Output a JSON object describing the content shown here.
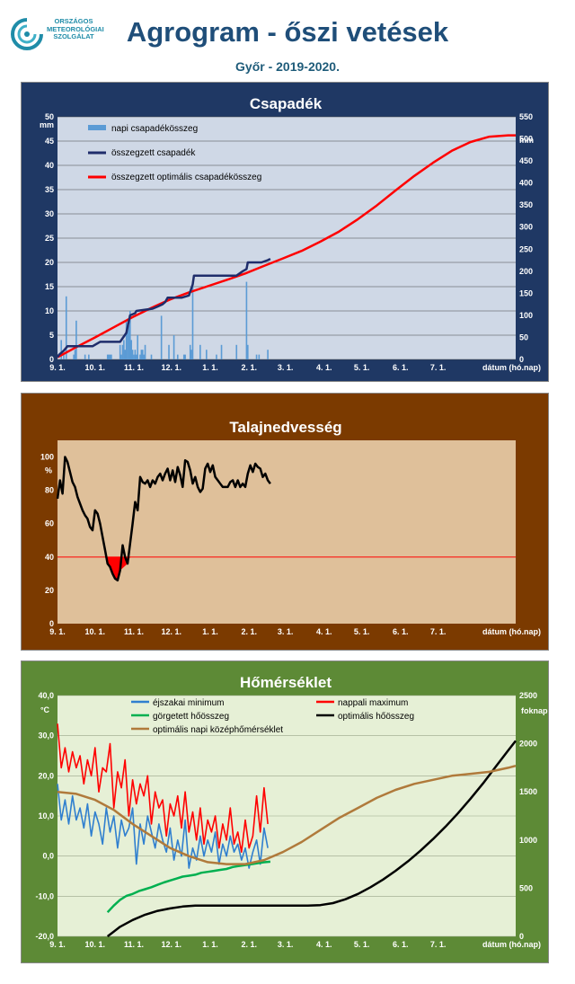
{
  "header": {
    "logo_lines": [
      "ORSZÁGOS",
      "METEOROLÓGIAI",
      "SZOLGÁLAT"
    ],
    "title": "Agrogram - őszi vetések",
    "subtitle": "Győr - 2019-2020."
  },
  "colors": {
    "panel1_bg": "#1f3864",
    "panel1_plot": "#cfd8e6",
    "panel2_bg": "#7b3a00",
    "panel2_plot": "#dfc09a",
    "panel3_bg": "#5d8a36",
    "panel3_plot": "#e6f0d6"
  },
  "chart_data": [
    {
      "type": "bar",
      "title": "Csapadék",
      "ylabel": "mm",
      "y2label": "mm",
      "xlabel": "dátum (hó.nap)",
      "x_ticks": [
        "9. 1.",
        "10. 1.",
        "11. 1.",
        "12. 1.",
        "1. 1.",
        "2. 1.",
        "3. 1.",
        "4. 1.",
        "5. 1.",
        "6. 1.",
        "7. 1."
      ],
      "ylim": [
        0,
        50
      ],
      "y_ticks": [
        0,
        5,
        10,
        15,
        20,
        25,
        30,
        35,
        40,
        45,
        50
      ],
      "y2lim": [
        0,
        550
      ],
      "y2_ticks": [
        0,
        50,
        100,
        150,
        200,
        250,
        300,
        350,
        400,
        450,
        500,
        550
      ],
      "grid": true,
      "legend_position": "top-left",
      "legend": [
        "napi csapadékösszeg",
        "összegzett csapadék",
        "összegzett optimális csapadékösszeg"
      ],
      "series": [
        {
          "name": "napi csapadékösszeg",
          "type": "bar",
          "axis": "left",
          "color": "#5b9bd5",
          "days": [
            3,
            5,
            7,
            13,
            14,
            15,
            22,
            25,
            40,
            41,
            42,
            43,
            50,
            51,
            52,
            53,
            54,
            55,
            56,
            57,
            58,
            59,
            60,
            61,
            62,
            63,
            64,
            66,
            67,
            68,
            69,
            70,
            75,
            83,
            89,
            93,
            96,
            101,
            102,
            106,
            107,
            108,
            114,
            119,
            127,
            131,
            143,
            151,
            152,
            159,
            161,
            168
          ],
          "values": [
            4,
            1,
            13,
            1,
            2,
            8,
            1,
            1,
            1,
            1,
            1,
            1,
            3,
            1,
            3,
            4,
            2,
            8,
            6,
            7,
            10,
            4,
            2,
            1,
            2,
            1,
            5,
            1,
            2,
            2,
            1,
            3,
            1,
            9,
            3,
            5,
            1,
            1,
            1,
            3,
            2,
            16,
            3,
            2,
            1,
            3,
            3,
            16,
            3,
            1,
            1,
            2
          ]
        },
        {
          "name": "összegzett csapadék",
          "type": "line",
          "axis": "right",
          "color": "#1f2d6b",
          "x": [
            0,
            1,
            5,
            8,
            12,
            28,
            34,
            50,
            55,
            58,
            62,
            63,
            76,
            80,
            84,
            86,
            88,
            99,
            105,
            108,
            109,
            130,
            143,
            148,
            151,
            152,
            163,
            168,
            170
          ],
          "y": [
            5,
            10,
            20,
            30,
            30,
            30,
            40,
            40,
            60,
            100,
            105,
            110,
            115,
            120,
            125,
            130,
            140,
            140,
            145,
            170,
            190,
            190,
            190,
            200,
            205,
            220,
            220,
            225,
            228
          ]
        },
        {
          "name": "összegzett optimális csapadékösszeg",
          "type": "line",
          "axis": "right",
          "color": "#ff0000",
          "x": [
            0,
            15,
            30,
            45,
            60,
            75,
            90,
            105,
            120,
            135,
            150,
            165,
            180,
            195,
            210,
            225,
            240,
            255,
            270,
            285,
            300,
            315,
            330,
            345,
            360,
            366
          ],
          "y": [
            5,
            28,
            50,
            73,
            96,
            117,
            136,
            152,
            166,
            180,
            195,
            212,
            229,
            246,
            267,
            290,
            318,
            349,
            383,
            416,
            446,
            473,
            493,
            505,
            508,
            508
          ]
        }
      ]
    },
    {
      "type": "line",
      "title": "Talajnedvesség",
      "ylabel": "%",
      "xlabel": "dátum (hó.nap)",
      "x_ticks": [
        "9. 1.",
        "10. 1.",
        "11. 1.",
        "12. 1.",
        "1. 1.",
        "2. 1.",
        "3. 1.",
        "4. 1.",
        "5. 1.",
        "6. 1.",
        "7. 1."
      ],
      "ylim": [
        0,
        110
      ],
      "y_ticks": [
        0,
        20,
        40,
        60,
        80,
        100
      ],
      "grid": false,
      "threshold": 40,
      "threshold_color": "#ff0000",
      "fill_below_threshold_color": "#ff0000",
      "series": [
        {
          "name": "",
          "color": "#000000",
          "x": [
            0,
            2,
            4,
            6,
            8,
            10,
            12,
            14,
            16,
            18,
            20,
            22,
            24,
            26,
            28,
            30,
            32,
            34,
            36,
            38,
            40,
            42,
            44,
            46,
            48,
            50,
            52,
            54,
            56,
            58,
            60,
            62,
            64,
            66,
            68,
            70,
            72,
            74,
            76,
            78,
            80,
            82,
            84,
            86,
            88,
            90,
            92,
            94,
            96,
            98,
            100,
            102,
            104,
            106,
            108,
            110,
            112,
            114,
            116,
            118,
            120,
            122,
            124,
            126,
            128,
            130,
            132,
            134,
            136,
            138,
            140,
            142,
            144,
            146,
            148,
            150,
            152,
            154,
            156,
            158,
            160,
            162,
            164,
            166,
            168,
            170
          ],
          "y": [
            75,
            86,
            78,
            100,
            97,
            91,
            85,
            82,
            76,
            72,
            68,
            65,
            63,
            58,
            56,
            68,
            66,
            60,
            52,
            44,
            36,
            34,
            30,
            27,
            26,
            32,
            47,
            40,
            36,
            48,
            60,
            73,
            68,
            88,
            85,
            84,
            86,
            82,
            86,
            84,
            88,
            90,
            86,
            90,
            93,
            86,
            92,
            85,
            94,
            89,
            82,
            98,
            97,
            92,
            84,
            88,
            82,
            79,
            81,
            93,
            96,
            91,
            95,
            88,
            86,
            84,
            82,
            82,
            82,
            85,
            86,
            82,
            86,
            82,
            84,
            82,
            90,
            95,
            91,
            96,
            94,
            93,
            88,
            90,
            86,
            84
          ]
        }
      ]
    },
    {
      "type": "line",
      "title": "Hőmérséklet",
      "ylabel": "°C",
      "y2label": "foknap",
      "xlabel": "dátum (hó.nap)",
      "x_ticks": [
        "9. 1.",
        "10. 1.",
        "11. 1.",
        "12. 1.",
        "1. 1.",
        "2. 1.",
        "3. 1.",
        "4. 1.",
        "5. 1.",
        "6. 1.",
        "7. 1."
      ],
      "y_tick_labels": [
        "-20,0",
        "-10,0",
        "0,0",
        "10,0",
        "20,0",
        "30,0",
        "40,0"
      ],
      "ylim": [
        -20,
        40
      ],
      "y2lim": [
        0,
        2500
      ],
      "y2_ticks": [
        0,
        500,
        1000,
        1500,
        2000,
        2500
      ],
      "grid": true,
      "legend_position": "top",
      "legend": [
        "éjszakai minimum",
        "nappali maximum",
        "görgetett hőösszeg",
        "optimális hőösszeg",
        "optimális napi középhőmérséklet"
      ],
      "series": [
        {
          "name": "éjszakai minimum",
          "axis": "left",
          "color": "#2f7fcf",
          "x": [
            0,
            3,
            6,
            9,
            12,
            15,
            18,
            21,
            24,
            27,
            30,
            33,
            36,
            39,
            42,
            45,
            48,
            51,
            54,
            57,
            60,
            63,
            66,
            69,
            72,
            75,
            78,
            81,
            84,
            87,
            90,
            93,
            96,
            99,
            102,
            105,
            108,
            111,
            114,
            117,
            120,
            123,
            126,
            129,
            132,
            135,
            138,
            141,
            144,
            147,
            150,
            153,
            156,
            159,
            162,
            165,
            168
          ],
          "y": [
            18,
            9,
            14,
            8,
            15,
            9,
            12,
            7,
            13,
            5,
            11,
            8,
            3,
            12,
            6,
            10,
            2,
            9,
            5,
            7,
            12,
            -2,
            8,
            3,
            10,
            6,
            2,
            8,
            4,
            1,
            7,
            -1,
            4,
            0,
            9,
            -3,
            2,
            -1,
            5,
            0,
            4,
            1,
            6,
            -2,
            3,
            0,
            5,
            1,
            3,
            -1,
            2,
            -3,
            1,
            4,
            -2,
            7,
            2
          ]
        },
        {
          "name": "nappali maximum",
          "axis": "left",
          "color": "#ff0000",
          "x": [
            0,
            3,
            6,
            9,
            12,
            15,
            18,
            21,
            24,
            27,
            30,
            33,
            36,
            39,
            42,
            45,
            48,
            51,
            54,
            57,
            60,
            63,
            66,
            69,
            72,
            75,
            78,
            81,
            84,
            87,
            90,
            93,
            96,
            99,
            102,
            105,
            108,
            111,
            114,
            117,
            120,
            123,
            126,
            129,
            132,
            135,
            138,
            141,
            144,
            147,
            150,
            153,
            156,
            159,
            162,
            165,
            168
          ],
          "y": [
            33,
            22,
            27,
            21,
            26,
            22,
            25,
            18,
            24,
            20,
            27,
            16,
            22,
            21,
            28,
            12,
            21,
            17,
            24,
            10,
            19,
            13,
            18,
            15,
            20,
            8,
            16,
            12,
            14,
            5,
            13,
            10,
            15,
            7,
            16,
            6,
            11,
            4,
            12,
            3,
            9,
            6,
            10,
            2,
            8,
            4,
            12,
            3,
            6,
            1,
            9,
            2,
            5,
            15,
            6,
            17,
            8
          ]
        },
        {
          "name": "görgetett hőösszeg",
          "axis": "right",
          "color": "#00b050",
          "x": [
            40,
            45,
            50,
            55,
            60,
            65,
            70,
            75,
            80,
            85,
            90,
            95,
            100,
            105,
            110,
            115,
            120,
            125,
            130,
            135,
            140,
            145,
            150,
            155,
            160,
            165,
            170
          ],
          "y": [
            250,
            320,
            380,
            420,
            440,
            470,
            490,
            510,
            535,
            560,
            580,
            600,
            620,
            630,
            640,
            660,
            670,
            680,
            690,
            700,
            720,
            730,
            740,
            750,
            760,
            770,
            775
          ]
        },
        {
          "name": "optimális hőösszeg",
          "axis": "right",
          "color": "#000000",
          "x": [
            40,
            50,
            60,
            70,
            80,
            90,
            100,
            110,
            120,
            130,
            140,
            150,
            160,
            170,
            180,
            190,
            200,
            210,
            220,
            230,
            240,
            250,
            260,
            270,
            280,
            290,
            300,
            310,
            320,
            330,
            340,
            350,
            360,
            366
          ],
          "y": [
            0,
            100,
            170,
            225,
            265,
            290,
            310,
            320,
            320,
            320,
            320,
            320,
            320,
            320,
            320,
            320,
            320,
            325,
            345,
            385,
            440,
            510,
            590,
            680,
            780,
            890,
            1010,
            1140,
            1280,
            1430,
            1590,
            1760,
            1930,
            2030
          ]
        },
        {
          "name": "optimális napi középhőmérséklet",
          "axis": "left",
          "color": "#b07a3b",
          "x": [
            0,
            15,
            30,
            45,
            60,
            75,
            90,
            105,
            120,
            135,
            150,
            165,
            180,
            195,
            210,
            225,
            240,
            255,
            270,
            285,
            300,
            315,
            330,
            345,
            360,
            366
          ],
          "y": [
            16,
            15.5,
            14,
            11.5,
            8,
            5,
            2,
            0,
            -1.5,
            -2,
            -2,
            -1,
            1,
            3.5,
            6.5,
            9.5,
            12,
            14.5,
            16.5,
            18,
            19,
            20,
            20.5,
            21,
            22,
            22.5
          ]
        }
      ]
    }
  ]
}
